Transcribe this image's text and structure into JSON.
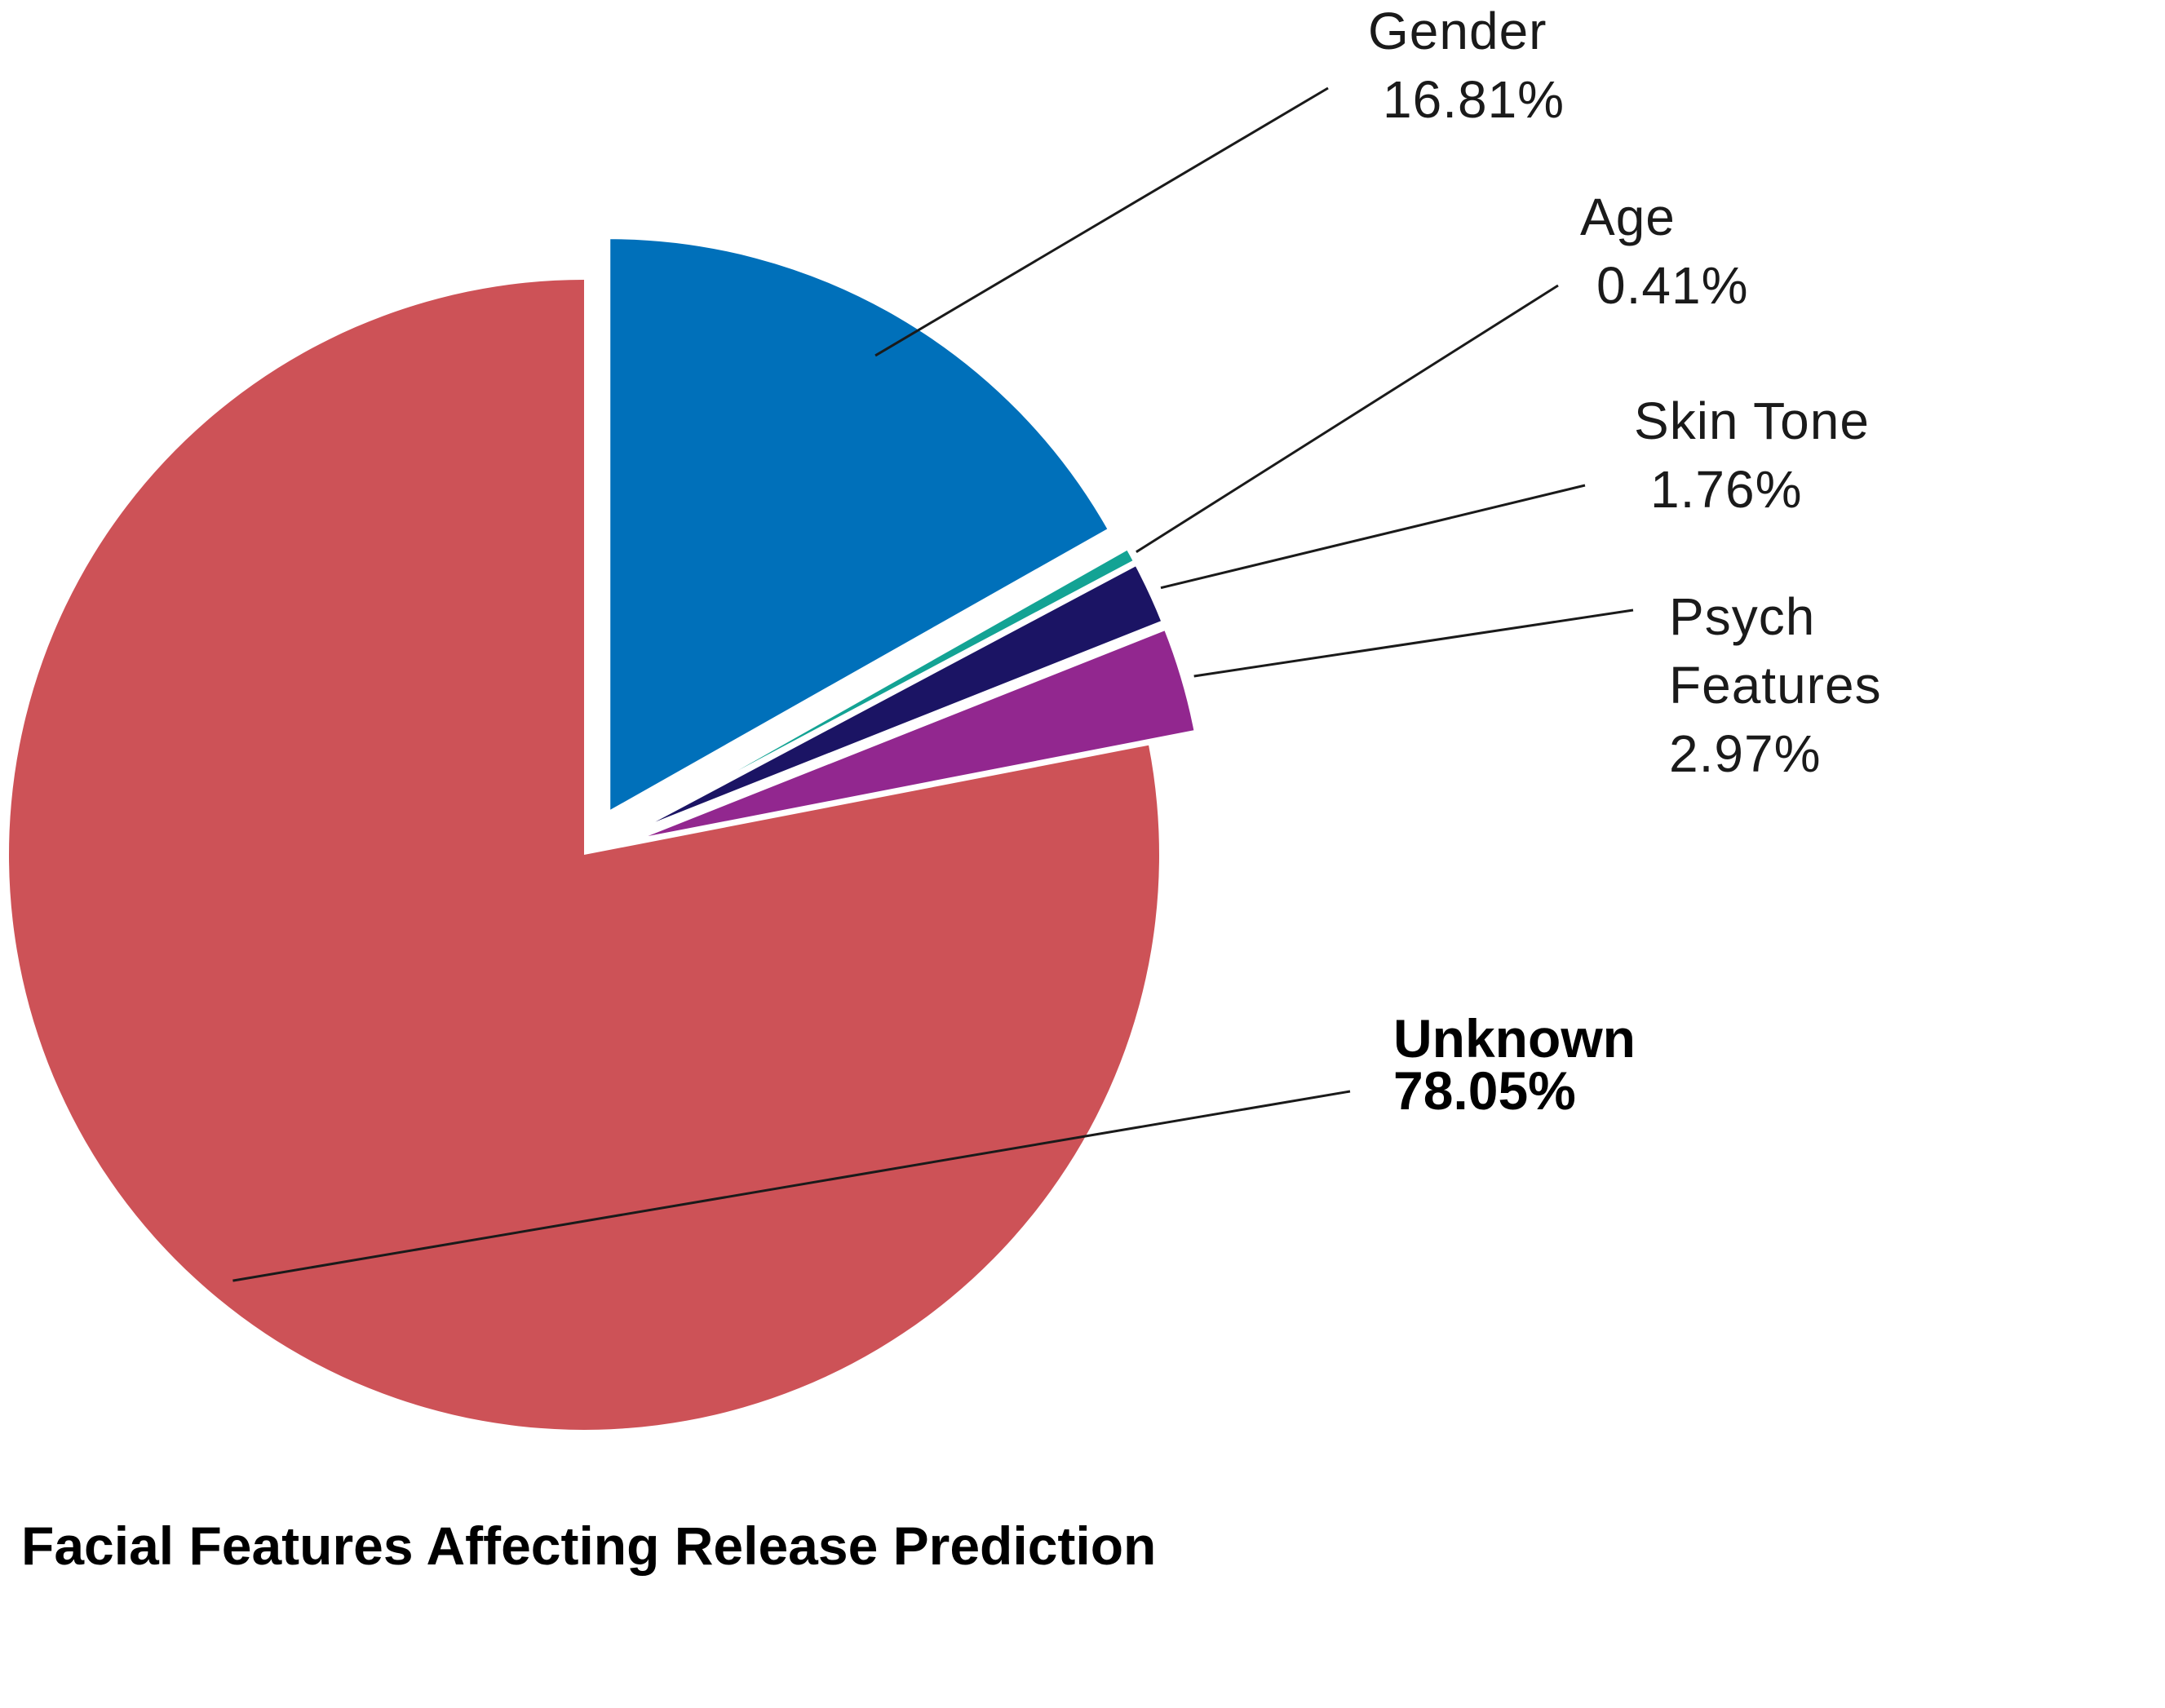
{
  "chart_data": {
    "type": "pie",
    "title": "Facial Features Affecting Release Prediction",
    "slices": [
      {
        "name": "Gender",
        "value": 16.81,
        "display": "16.81%",
        "color": "#0070BA",
        "emphasis": false,
        "label_lines": [
          "Gender"
        ]
      },
      {
        "name": "Age",
        "value": 0.41,
        "display": "0.41%",
        "color": "#13A394",
        "emphasis": false,
        "label_lines": [
          "Age"
        ]
      },
      {
        "name": "Skin Tone",
        "value": 1.76,
        "display": "1.76%",
        "color": "#1B1464",
        "emphasis": false,
        "label_lines": [
          "Skin Tone"
        ]
      },
      {
        "name": "Psych Features",
        "value": 2.97,
        "display": "2.97%",
        "color": "#92278F",
        "emphasis": false,
        "label_lines": [
          "Psych",
          "Features"
        ]
      },
      {
        "name": "Unknown",
        "value": 78.05,
        "display": "78.05%",
        "color": "#CD5257",
        "emphasis": true,
        "label_lines": [
          "Unknown"
        ]
      }
    ],
    "start_angle_deg": 0,
    "direction": "clockwise",
    "exploded": [
      "Gender",
      "Age",
      "Skin Tone",
      "Psych Features"
    ]
  }
}
